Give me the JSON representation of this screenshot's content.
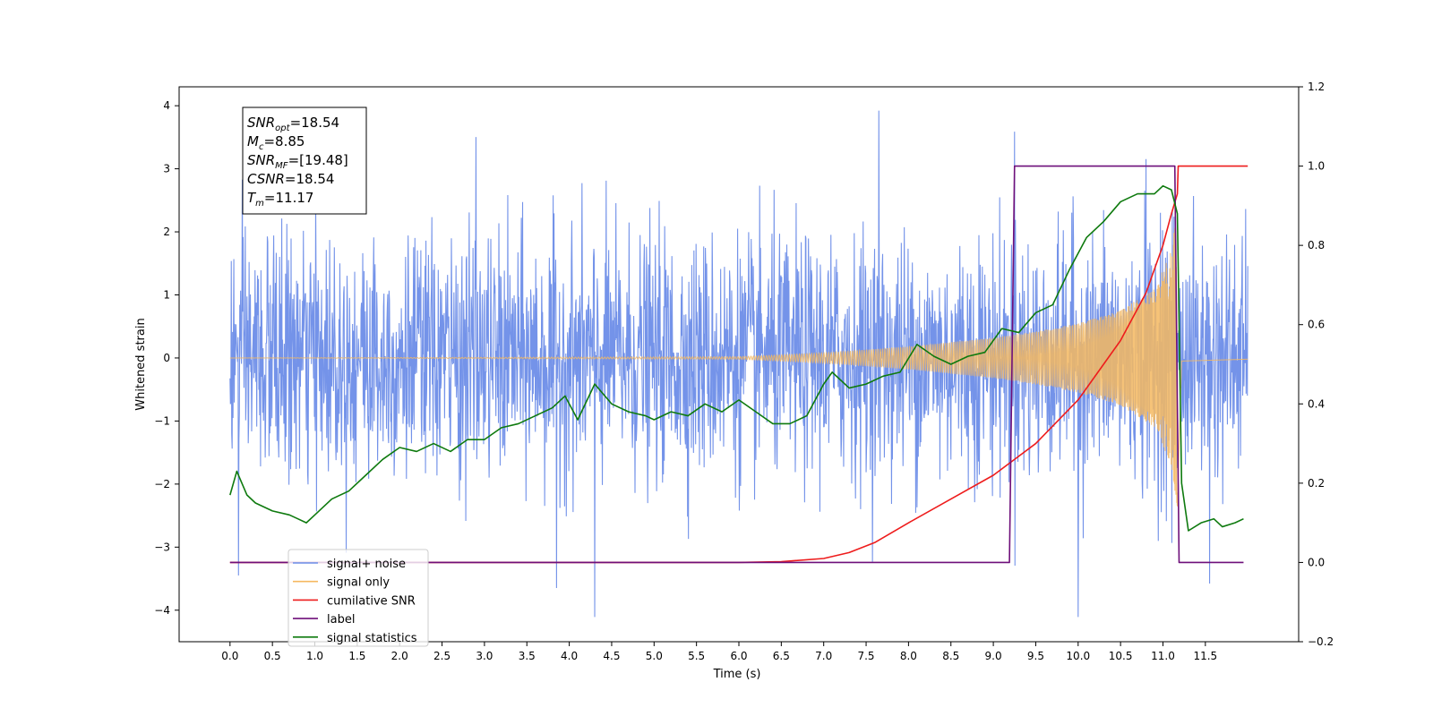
{
  "chart_data": {
    "type": "line",
    "xlabel": "Time (s)",
    "ylabel_left": "Whitened strain",
    "ylabel_right": "",
    "xlim": [
      -0.6,
      12.6
    ],
    "ylim_left": [
      -4.5,
      4.3
    ],
    "ylim_right": [
      -0.2,
      1.2
    ],
    "x_ticks": [
      0.0,
      0.5,
      1.0,
      1.5,
      2.0,
      2.5,
      3.0,
      3.5,
      4.0,
      4.5,
      5.0,
      5.5,
      6.0,
      6.5,
      7.0,
      7.5,
      8.0,
      8.5,
      9.0,
      9.5,
      10.0,
      10.5,
      11.0,
      11.5
    ],
    "x_tick_labels": [
      "0.0",
      "0.5",
      "1.0",
      "1.5",
      "2.0",
      "2.5",
      "3.0",
      "3.5",
      "4.0",
      "4.5",
      "5.0",
      "5.5",
      "6.0",
      "6.5",
      "7.0",
      "7.5",
      "8.0",
      "8.5",
      "9.0",
      "9.5",
      "10.0",
      "10.5",
      "11.0",
      "11.5"
    ],
    "y_ticks_left": [
      -4,
      -3,
      -2,
      -1,
      0,
      1,
      2,
      3,
      4
    ],
    "y_ticks_right": [
      -0.2,
      0.0,
      0.2,
      0.4,
      0.6,
      0.8,
      1.0,
      1.2
    ],
    "y_tick_labels_right": [
      "−0.2",
      "0.0",
      "0.2",
      "0.4",
      "0.6",
      "0.8",
      "1.0",
      "1.2"
    ],
    "grid": false,
    "legend_placement": "lower-left",
    "annotation": {
      "lines": [
        {
          "var": "SNR",
          "sub": "opt",
          "value": "=18.54"
        },
        {
          "var": "M",
          "sub": "c",
          "value": "=8.85"
        },
        {
          "var": "SNR",
          "sub": "MF",
          "value": "=[19.48]"
        },
        {
          "var": "CSNR",
          "sub": "",
          "value": "=18.54"
        },
        {
          "var": "T",
          "sub": "m",
          "value": "=11.17"
        }
      ]
    },
    "series": [
      {
        "name": "signal+ noise",
        "axis": "left",
        "color": "#6d8de8",
        "kind": "noise",
        "t_start": 0.0,
        "t_end": 12.0,
        "typical_envelope": 2.1,
        "max_spikes": [
          3.9,
          3.8,
          3.75,
          3.5
        ],
        "min_spikes": [
          -4.1,
          -4.05,
          -3.65,
          -3.6,
          -3.45
        ],
        "note_zero_centered": true
      },
      {
        "name": "signal only",
        "axis": "left",
        "color": "#f5b860",
        "kind": "chirp",
        "t_start": 0.0,
        "t_merger": 11.17,
        "t_end": 12.0,
        "amplitude_envelope": [
          [
            0.0,
            0.0
          ],
          [
            6.0,
            0.02
          ],
          [
            7.0,
            0.08
          ],
          [
            8.0,
            0.18
          ],
          [
            9.0,
            0.32
          ],
          [
            9.5,
            0.42
          ],
          [
            10.0,
            0.55
          ],
          [
            10.5,
            0.75
          ],
          [
            10.9,
            1.1
          ],
          [
            11.1,
            1.7
          ],
          [
            11.17,
            2.4
          ],
          [
            11.22,
            0.05
          ],
          [
            12.0,
            0.02
          ]
        ]
      },
      {
        "name": "cumilative SNR",
        "axis": "right",
        "color": "#ee1c1c",
        "points": [
          [
            0.0,
            0.0
          ],
          [
            6.0,
            0.0
          ],
          [
            6.5,
            0.002
          ],
          [
            7.0,
            0.01
          ],
          [
            7.3,
            0.025
          ],
          [
            7.6,
            0.05
          ],
          [
            8.0,
            0.1
          ],
          [
            8.5,
            0.16
          ],
          [
            9.0,
            0.22
          ],
          [
            9.5,
            0.3
          ],
          [
            10.0,
            0.41
          ],
          [
            10.5,
            0.56
          ],
          [
            10.8,
            0.68
          ],
          [
            11.0,
            0.8
          ],
          [
            11.1,
            0.88
          ],
          [
            11.17,
            0.93
          ],
          [
            11.18,
            1.0
          ],
          [
            12.0,
            1.0
          ]
        ]
      },
      {
        "name": "label",
        "axis": "right",
        "color": "#6e0f7a",
        "points": [
          [
            0.0,
            0.0
          ],
          [
            9.19,
            0.0
          ],
          [
            9.25,
            1.0
          ],
          [
            11.14,
            1.0
          ],
          [
            11.19,
            0.0
          ],
          [
            11.95,
            0.0
          ]
        ]
      },
      {
        "name": "signal statistics",
        "axis": "right",
        "color": "#0e7a0e",
        "points": [
          [
            0.0,
            0.17
          ],
          [
            0.08,
            0.23
          ],
          [
            0.2,
            0.17
          ],
          [
            0.3,
            0.15
          ],
          [
            0.5,
            0.13
          ],
          [
            0.7,
            0.12
          ],
          [
            0.8,
            0.11
          ],
          [
            0.9,
            0.1
          ],
          [
            1.0,
            0.12
          ],
          [
            1.2,
            0.16
          ],
          [
            1.4,
            0.18
          ],
          [
            1.6,
            0.22
          ],
          [
            1.8,
            0.26
          ],
          [
            2.0,
            0.29
          ],
          [
            2.2,
            0.28
          ],
          [
            2.4,
            0.3
          ],
          [
            2.6,
            0.28
          ],
          [
            2.8,
            0.31
          ],
          [
            3.0,
            0.31
          ],
          [
            3.2,
            0.34
          ],
          [
            3.4,
            0.35
          ],
          [
            3.6,
            0.37
          ],
          [
            3.8,
            0.39
          ],
          [
            3.95,
            0.42
          ],
          [
            4.1,
            0.36
          ],
          [
            4.3,
            0.45
          ],
          [
            4.5,
            0.4
          ],
          [
            4.7,
            0.38
          ],
          [
            4.9,
            0.37
          ],
          [
            5.0,
            0.36
          ],
          [
            5.2,
            0.38
          ],
          [
            5.4,
            0.37
          ],
          [
            5.6,
            0.4
          ],
          [
            5.8,
            0.38
          ],
          [
            6.0,
            0.41
          ],
          [
            6.2,
            0.38
          ],
          [
            6.4,
            0.35
          ],
          [
            6.6,
            0.35
          ],
          [
            6.8,
            0.37
          ],
          [
            7.0,
            0.45
          ],
          [
            7.1,
            0.48
          ],
          [
            7.3,
            0.44
          ],
          [
            7.5,
            0.45
          ],
          [
            7.7,
            0.47
          ],
          [
            7.9,
            0.48
          ],
          [
            8.1,
            0.55
          ],
          [
            8.3,
            0.52
          ],
          [
            8.5,
            0.5
          ],
          [
            8.7,
            0.52
          ],
          [
            8.9,
            0.53
          ],
          [
            9.1,
            0.59
          ],
          [
            9.3,
            0.58
          ],
          [
            9.5,
            0.63
          ],
          [
            9.7,
            0.65
          ],
          [
            9.9,
            0.74
          ],
          [
            10.1,
            0.82
          ],
          [
            10.3,
            0.86
          ],
          [
            10.5,
            0.91
          ],
          [
            10.7,
            0.93
          ],
          [
            10.9,
            0.93
          ],
          [
            11.0,
            0.95
          ],
          [
            11.1,
            0.94
          ],
          [
            11.17,
            0.88
          ],
          [
            11.22,
            0.2
          ],
          [
            11.3,
            0.08
          ],
          [
            11.45,
            0.1
          ],
          [
            11.6,
            0.11
          ],
          [
            11.7,
            0.09
          ],
          [
            11.85,
            0.1
          ],
          [
            11.95,
            0.11
          ]
        ]
      }
    ],
    "legend_entries": [
      {
        "label": "signal+ noise",
        "color": "#6d8de8"
      },
      {
        "label": "signal only",
        "color": "#f5b860"
      },
      {
        "label": "cumilative SNR",
        "color": "#ee1c1c"
      },
      {
        "label": "label",
        "color": "#6e0f7a"
      },
      {
        "label": "signal statistics",
        "color": "#0e7a0e"
      }
    ]
  }
}
